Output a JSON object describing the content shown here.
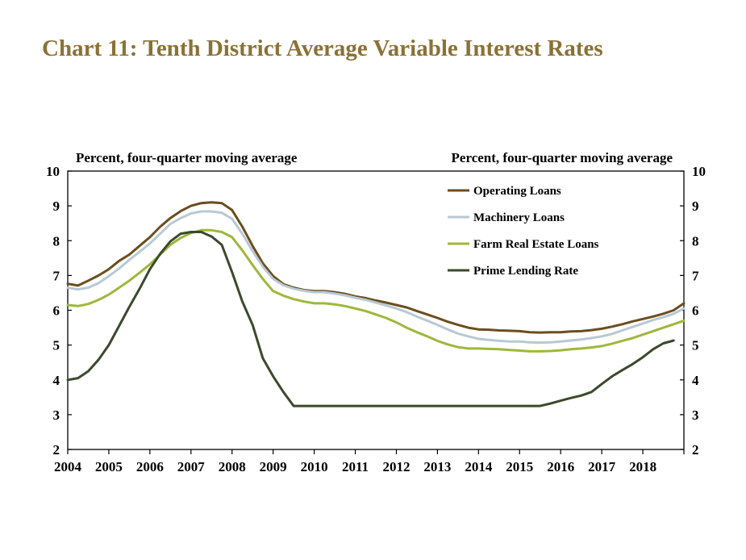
{
  "title": "Chart 11: Tenth District Average Variable Interest Rates",
  "chart_data": {
    "type": "line",
    "left_axis_label": "Percent, four-quarter moving average",
    "right_axis_label": "Percent, four-quarter moving average",
    "ylim": [
      2,
      10
    ],
    "yticks": [
      "2",
      "3",
      "4",
      "5",
      "6",
      "7",
      "8",
      "9",
      "10"
    ],
    "xlim": [
      2004,
      2019
    ],
    "xticks": [
      "2004",
      "2005",
      "2006",
      "2007",
      "2008",
      "2009",
      "2010",
      "2011",
      "2012",
      "2013",
      "2014",
      "2015",
      "2016",
      "2017",
      "2018"
    ],
    "legend_position": "top-right",
    "series": [
      {
        "name": "Operating Loans",
        "color": "#6b4e1e",
        "points": [
          [
            2004.0,
            6.76
          ],
          [
            2004.25,
            6.71
          ],
          [
            2004.5,
            6.85
          ],
          [
            2004.75,
            7.0
          ],
          [
            2005.0,
            7.18
          ],
          [
            2005.25,
            7.42
          ],
          [
            2005.5,
            7.6
          ],
          [
            2005.75,
            7.85
          ],
          [
            2006.0,
            8.1
          ],
          [
            2006.25,
            8.4
          ],
          [
            2006.5,
            8.65
          ],
          [
            2006.75,
            8.85
          ],
          [
            2007.0,
            9.0
          ],
          [
            2007.25,
            9.08
          ],
          [
            2007.5,
            9.1
          ],
          [
            2007.75,
            9.08
          ],
          [
            2008.0,
            8.88
          ],
          [
            2008.25,
            8.4
          ],
          [
            2008.5,
            7.85
          ],
          [
            2008.75,
            7.35
          ],
          [
            2009.0,
            6.98
          ],
          [
            2009.25,
            6.75
          ],
          [
            2009.5,
            6.65
          ],
          [
            2009.75,
            6.58
          ],
          [
            2010.0,
            6.55
          ],
          [
            2010.25,
            6.55
          ],
          [
            2010.5,
            6.52
          ],
          [
            2010.75,
            6.47
          ],
          [
            2011.0,
            6.4
          ],
          [
            2011.25,
            6.35
          ],
          [
            2011.5,
            6.28
          ],
          [
            2011.75,
            6.22
          ],
          [
            2012.0,
            6.15
          ],
          [
            2012.25,
            6.08
          ],
          [
            2012.5,
            5.98
          ],
          [
            2012.75,
            5.88
          ],
          [
            2013.0,
            5.78
          ],
          [
            2013.25,
            5.67
          ],
          [
            2013.5,
            5.58
          ],
          [
            2013.75,
            5.5
          ],
          [
            2014.0,
            5.45
          ],
          [
            2014.25,
            5.44
          ],
          [
            2014.5,
            5.42
          ],
          [
            2014.75,
            5.41
          ],
          [
            2015.0,
            5.4
          ],
          [
            2015.25,
            5.37
          ],
          [
            2015.5,
            5.36
          ],
          [
            2015.75,
            5.37
          ],
          [
            2016.0,
            5.37
          ],
          [
            2016.25,
            5.39
          ],
          [
            2016.5,
            5.4
          ],
          [
            2016.75,
            5.43
          ],
          [
            2017.0,
            5.47
          ],
          [
            2017.25,
            5.53
          ],
          [
            2017.5,
            5.6
          ],
          [
            2017.75,
            5.68
          ],
          [
            2018.0,
            5.75
          ],
          [
            2018.25,
            5.82
          ],
          [
            2018.5,
            5.9
          ],
          [
            2018.75,
            6.0
          ],
          [
            2019.0,
            6.2
          ]
        ]
      },
      {
        "name": "Machinery Loans",
        "color": "#b8c9d3",
        "points": [
          [
            2004.0,
            6.65
          ],
          [
            2004.25,
            6.6
          ],
          [
            2004.5,
            6.65
          ],
          [
            2004.75,
            6.78
          ],
          [
            2005.0,
            6.98
          ],
          [
            2005.25,
            7.2
          ],
          [
            2005.5,
            7.45
          ],
          [
            2005.75,
            7.68
          ],
          [
            2006.0,
            7.92
          ],
          [
            2006.25,
            8.2
          ],
          [
            2006.5,
            8.48
          ],
          [
            2006.75,
            8.65
          ],
          [
            2007.0,
            8.78
          ],
          [
            2007.25,
            8.84
          ],
          [
            2007.5,
            8.84
          ],
          [
            2007.75,
            8.8
          ],
          [
            2008.0,
            8.63
          ],
          [
            2008.25,
            8.2
          ],
          [
            2008.5,
            7.7
          ],
          [
            2008.75,
            7.25
          ],
          [
            2009.0,
            6.9
          ],
          [
            2009.25,
            6.72
          ],
          [
            2009.5,
            6.62
          ],
          [
            2009.75,
            6.56
          ],
          [
            2010.0,
            6.52
          ],
          [
            2010.25,
            6.52
          ],
          [
            2010.5,
            6.48
          ],
          [
            2010.75,
            6.43
          ],
          [
            2011.0,
            6.36
          ],
          [
            2011.25,
            6.3
          ],
          [
            2011.5,
            6.22
          ],
          [
            2011.75,
            6.14
          ],
          [
            2012.0,
            6.05
          ],
          [
            2012.25,
            5.95
          ],
          [
            2012.5,
            5.82
          ],
          [
            2012.75,
            5.7
          ],
          [
            2013.0,
            5.58
          ],
          [
            2013.25,
            5.45
          ],
          [
            2013.5,
            5.33
          ],
          [
            2013.75,
            5.25
          ],
          [
            2014.0,
            5.18
          ],
          [
            2014.25,
            5.15
          ],
          [
            2014.5,
            5.12
          ],
          [
            2014.75,
            5.1
          ],
          [
            2015.0,
            5.1
          ],
          [
            2015.25,
            5.08
          ],
          [
            2015.5,
            5.07
          ],
          [
            2015.75,
            5.08
          ],
          [
            2016.0,
            5.1
          ],
          [
            2016.25,
            5.13
          ],
          [
            2016.5,
            5.16
          ],
          [
            2016.75,
            5.2
          ],
          [
            2017.0,
            5.25
          ],
          [
            2017.25,
            5.32
          ],
          [
            2017.5,
            5.42
          ],
          [
            2017.75,
            5.52
          ],
          [
            2018.0,
            5.62
          ],
          [
            2018.25,
            5.72
          ],
          [
            2018.5,
            5.8
          ],
          [
            2018.75,
            5.9
          ],
          [
            2019.0,
            6.05
          ]
        ]
      },
      {
        "name": "Farm Real Estate Loans",
        "color": "#9db83a",
        "points": [
          [
            2004.0,
            6.15
          ],
          [
            2004.25,
            6.12
          ],
          [
            2004.5,
            6.18
          ],
          [
            2004.75,
            6.3
          ],
          [
            2005.0,
            6.45
          ],
          [
            2005.25,
            6.65
          ],
          [
            2005.5,
            6.85
          ],
          [
            2005.75,
            7.08
          ],
          [
            2006.0,
            7.32
          ],
          [
            2006.25,
            7.6
          ],
          [
            2006.5,
            7.88
          ],
          [
            2006.75,
            8.08
          ],
          [
            2007.0,
            8.22
          ],
          [
            2007.25,
            8.3
          ],
          [
            2007.5,
            8.3
          ],
          [
            2007.75,
            8.25
          ],
          [
            2008.0,
            8.1
          ],
          [
            2008.25,
            7.72
          ],
          [
            2008.5,
            7.3
          ],
          [
            2008.75,
            6.9
          ],
          [
            2009.0,
            6.55
          ],
          [
            2009.25,
            6.42
          ],
          [
            2009.5,
            6.32
          ],
          [
            2009.75,
            6.25
          ],
          [
            2010.0,
            6.2
          ],
          [
            2010.25,
            6.2
          ],
          [
            2010.5,
            6.17
          ],
          [
            2010.75,
            6.12
          ],
          [
            2011.0,
            6.05
          ],
          [
            2011.25,
            5.98
          ],
          [
            2011.5,
            5.88
          ],
          [
            2011.75,
            5.78
          ],
          [
            2012.0,
            5.65
          ],
          [
            2012.25,
            5.5
          ],
          [
            2012.5,
            5.37
          ],
          [
            2012.75,
            5.25
          ],
          [
            2013.0,
            5.12
          ],
          [
            2013.25,
            5.02
          ],
          [
            2013.5,
            4.94
          ],
          [
            2013.75,
            4.9
          ],
          [
            2014.0,
            4.9
          ],
          [
            2014.25,
            4.89
          ],
          [
            2014.5,
            4.88
          ],
          [
            2014.75,
            4.86
          ],
          [
            2015.0,
            4.84
          ],
          [
            2015.25,
            4.82
          ],
          [
            2015.5,
            4.82
          ],
          [
            2015.75,
            4.83
          ],
          [
            2016.0,
            4.85
          ],
          [
            2016.25,
            4.88
          ],
          [
            2016.5,
            4.9
          ],
          [
            2016.75,
            4.93
          ],
          [
            2017.0,
            4.97
          ],
          [
            2017.25,
            5.04
          ],
          [
            2017.5,
            5.12
          ],
          [
            2017.75,
            5.2
          ],
          [
            2018.0,
            5.3
          ],
          [
            2018.25,
            5.4
          ],
          [
            2018.5,
            5.5
          ],
          [
            2018.75,
            5.6
          ],
          [
            2019.0,
            5.7
          ]
        ]
      },
      {
        "name": "Prime Lending Rate",
        "color": "#3a4a2c",
        "points": [
          [
            2004.0,
            4.0
          ],
          [
            2004.25,
            4.05
          ],
          [
            2004.5,
            4.25
          ],
          [
            2004.75,
            4.58
          ],
          [
            2005.0,
            5.0
          ],
          [
            2005.25,
            5.55
          ],
          [
            2005.5,
            6.1
          ],
          [
            2005.75,
            6.62
          ],
          [
            2006.0,
            7.18
          ],
          [
            2006.25,
            7.62
          ],
          [
            2006.5,
            7.98
          ],
          [
            2006.75,
            8.2
          ],
          [
            2007.0,
            8.25
          ],
          [
            2007.25,
            8.25
          ],
          [
            2007.5,
            8.12
          ],
          [
            2007.75,
            7.88
          ],
          [
            2008.0,
            7.1
          ],
          [
            2008.25,
            6.25
          ],
          [
            2008.5,
            5.58
          ],
          [
            2008.75,
            4.62
          ],
          [
            2009.0,
            4.1
          ],
          [
            2009.25,
            3.65
          ],
          [
            2009.5,
            3.25
          ],
          [
            2010.0,
            3.25
          ],
          [
            2015.5,
            3.25
          ],
          [
            2015.75,
            3.32
          ],
          [
            2016.0,
            3.4
          ],
          [
            2016.25,
            3.48
          ],
          [
            2016.5,
            3.55
          ],
          [
            2016.75,
            3.65
          ],
          [
            2017.0,
            3.88
          ],
          [
            2017.25,
            4.1
          ],
          [
            2017.5,
            4.28
          ],
          [
            2017.75,
            4.45
          ],
          [
            2018.0,
            4.65
          ],
          [
            2018.25,
            4.88
          ],
          [
            2018.5,
            5.05
          ],
          [
            2018.75,
            5.13
          ]
        ]
      }
    ]
  }
}
